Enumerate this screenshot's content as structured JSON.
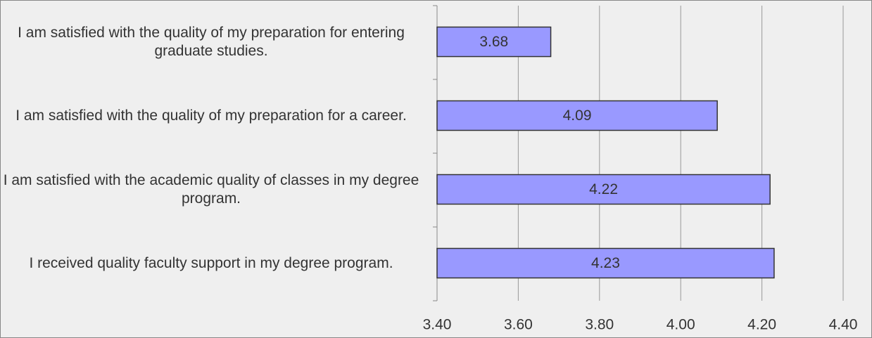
{
  "chart_data": {
    "type": "bar",
    "orientation": "horizontal",
    "categories": [
      "I am satisfied with the quality of my preparation for entering graduate studies.",
      "I am satisfied with the quality of my preparation for a career.",
      "I am satisfied with the academic quality of classes in my degree program.",
      "I received quality faculty support in my degree program."
    ],
    "values": [
      3.68,
      4.09,
      4.22,
      4.23
    ],
    "color": "#9999ff",
    "xlim": [
      3.4,
      4.4
    ],
    "xticks": [
      {
        "value": 3.4,
        "label": "3.40"
      },
      {
        "value": 3.6,
        "label": "3.60"
      },
      {
        "value": 3.8,
        "label": "3.80"
      },
      {
        "value": 4.0,
        "label": "4.00"
      },
      {
        "value": 4.2,
        "label": "4.20"
      },
      {
        "value": 4.4,
        "label": "4.40"
      }
    ],
    "grid": true
  }
}
